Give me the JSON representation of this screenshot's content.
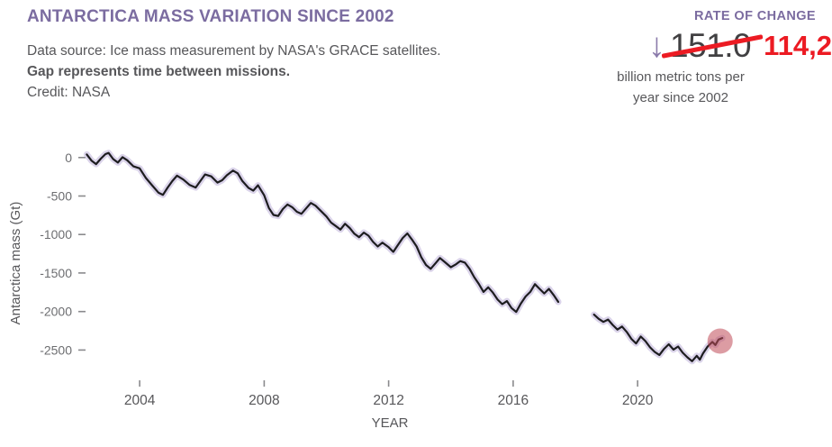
{
  "header": {
    "title": "ANTARCTICA MASS VARIATION SINCE 2002",
    "source_line": "Data source: Ice mass measurement by NASA's GRACE satellites.",
    "gap_line": "Gap represents time between missions.",
    "credit_line": "Credit: NASA"
  },
  "rate_of_change": {
    "label": "RATE OF CHANGE",
    "arrow_icon": "down-arrow",
    "arrow_glyph": "↓",
    "previous_value": "151.0",
    "current_value": "114,2",
    "unit_line1": "billion metric tons per",
    "unit_line2": "year since 2002",
    "accent_color": "#7b6ca0",
    "highlight_color": "#ec1b23"
  },
  "chart_data": {
    "type": "line",
    "title": "Antarctica mass variation since 2002",
    "xlabel": "YEAR",
    "ylabel": "Antarctica mass (Gt)",
    "xlim": [
      2002,
      2023.7
    ],
    "ylim": [
      -2800,
      150
    ],
    "x_ticks": [
      2004,
      2008,
      2012,
      2016,
      2020
    ],
    "y_ticks": [
      0,
      -500,
      -1000,
      -1500,
      -2000,
      -2500
    ],
    "grid": false,
    "legend": "none",
    "line_color": "#1d1d1f",
    "band_color": "#b7a9d6",
    "highlight_marker": {
      "x": 2022.65,
      "y": -2385,
      "radius": 14,
      "color": "#bf4b57"
    },
    "series": [
      {
        "name": "grace",
        "points": [
          [
            2002.3,
            40
          ],
          [
            2002.45,
            -40
          ],
          [
            2002.6,
            -85
          ],
          [
            2002.75,
            -15
          ],
          [
            2002.9,
            45
          ],
          [
            2003.0,
            60
          ],
          [
            2003.15,
            -20
          ],
          [
            2003.3,
            -65
          ],
          [
            2003.45,
            5
          ],
          [
            2003.6,
            -35
          ],
          [
            2003.8,
            -115
          ],
          [
            2004.0,
            -140
          ],
          [
            2004.2,
            -265
          ],
          [
            2004.4,
            -360
          ],
          [
            2004.6,
            -455
          ],
          [
            2004.75,
            -485
          ],
          [
            2004.9,
            -390
          ],
          [
            2005.05,
            -305
          ],
          [
            2005.2,
            -235
          ],
          [
            2005.4,
            -285
          ],
          [
            2005.6,
            -355
          ],
          [
            2005.8,
            -390
          ],
          [
            2005.95,
            -305
          ],
          [
            2006.1,
            -220
          ],
          [
            2006.3,
            -245
          ],
          [
            2006.5,
            -325
          ],
          [
            2006.65,
            -295
          ],
          [
            2006.8,
            -230
          ],
          [
            2007.0,
            -170
          ],
          [
            2007.15,
            -205
          ],
          [
            2007.3,
            -305
          ],
          [
            2007.5,
            -395
          ],
          [
            2007.65,
            -430
          ],
          [
            2007.8,
            -360
          ],
          [
            2008.0,
            -490
          ],
          [
            2008.15,
            -655
          ],
          [
            2008.3,
            -745
          ],
          [
            2008.45,
            -760
          ],
          [
            2008.6,
            -670
          ],
          [
            2008.75,
            -610
          ],
          [
            2008.9,
            -645
          ],
          [
            2009.05,
            -705
          ],
          [
            2009.2,
            -730
          ],
          [
            2009.35,
            -660
          ],
          [
            2009.5,
            -590
          ],
          [
            2009.65,
            -625
          ],
          [
            2009.8,
            -685
          ],
          [
            2010.0,
            -765
          ],
          [
            2010.15,
            -845
          ],
          [
            2010.3,
            -890
          ],
          [
            2010.45,
            -935
          ],
          [
            2010.6,
            -860
          ],
          [
            2010.75,
            -915
          ],
          [
            2010.9,
            -990
          ],
          [
            2011.05,
            -1035
          ],
          [
            2011.2,
            -975
          ],
          [
            2011.35,
            -1015
          ],
          [
            2011.5,
            -1095
          ],
          [
            2011.65,
            -1155
          ],
          [
            2011.8,
            -1105
          ],
          [
            2012.0,
            -1165
          ],
          [
            2012.15,
            -1225
          ],
          [
            2012.3,
            -1135
          ],
          [
            2012.45,
            -1045
          ],
          [
            2012.6,
            -985
          ],
          [
            2012.75,
            -1065
          ],
          [
            2012.9,
            -1155
          ],
          [
            2013.05,
            -1295
          ],
          [
            2013.2,
            -1395
          ],
          [
            2013.35,
            -1445
          ],
          [
            2013.5,
            -1375
          ],
          [
            2013.65,
            -1305
          ],
          [
            2013.8,
            -1355
          ],
          [
            2014.0,
            -1425
          ],
          [
            2014.15,
            -1390
          ],
          [
            2014.3,
            -1345
          ],
          [
            2014.45,
            -1365
          ],
          [
            2014.6,
            -1445
          ],
          [
            2014.75,
            -1555
          ],
          [
            2014.9,
            -1645
          ],
          [
            2015.05,
            -1745
          ],
          [
            2015.2,
            -1685
          ],
          [
            2015.35,
            -1755
          ],
          [
            2015.5,
            -1845
          ],
          [
            2015.65,
            -1905
          ],
          [
            2015.8,
            -1865
          ],
          [
            2015.95,
            -1955
          ],
          [
            2016.1,
            -2005
          ],
          [
            2016.25,
            -1895
          ],
          [
            2016.4,
            -1805
          ],
          [
            2016.55,
            -1745
          ],
          [
            2016.7,
            -1645
          ],
          [
            2016.85,
            -1705
          ],
          [
            2017.0,
            -1765
          ],
          [
            2017.15,
            -1705
          ],
          [
            2017.3,
            -1785
          ],
          [
            2017.45,
            -1875
          ]
        ]
      },
      {
        "name": "grace-fo",
        "points": [
          [
            2018.6,
            -2040
          ],
          [
            2018.75,
            -2095
          ],
          [
            2018.9,
            -2135
          ],
          [
            2019.05,
            -2105
          ],
          [
            2019.2,
            -2175
          ],
          [
            2019.35,
            -2235
          ],
          [
            2019.5,
            -2195
          ],
          [
            2019.65,
            -2265
          ],
          [
            2019.8,
            -2355
          ],
          [
            2019.95,
            -2415
          ],
          [
            2020.1,
            -2325
          ],
          [
            2020.25,
            -2385
          ],
          [
            2020.4,
            -2465
          ],
          [
            2020.55,
            -2525
          ],
          [
            2020.7,
            -2565
          ],
          [
            2020.85,
            -2485
          ],
          [
            2021.0,
            -2425
          ],
          [
            2021.15,
            -2495
          ],
          [
            2021.3,
            -2455
          ],
          [
            2021.45,
            -2535
          ],
          [
            2021.6,
            -2595
          ],
          [
            2021.75,
            -2645
          ],
          [
            2021.9,
            -2575
          ],
          [
            2022.0,
            -2625
          ],
          [
            2022.1,
            -2545
          ],
          [
            2022.25,
            -2455
          ],
          [
            2022.4,
            -2395
          ],
          [
            2022.5,
            -2435
          ],
          [
            2022.6,
            -2365
          ],
          [
            2022.72,
            -2345
          ]
        ]
      }
    ]
  }
}
